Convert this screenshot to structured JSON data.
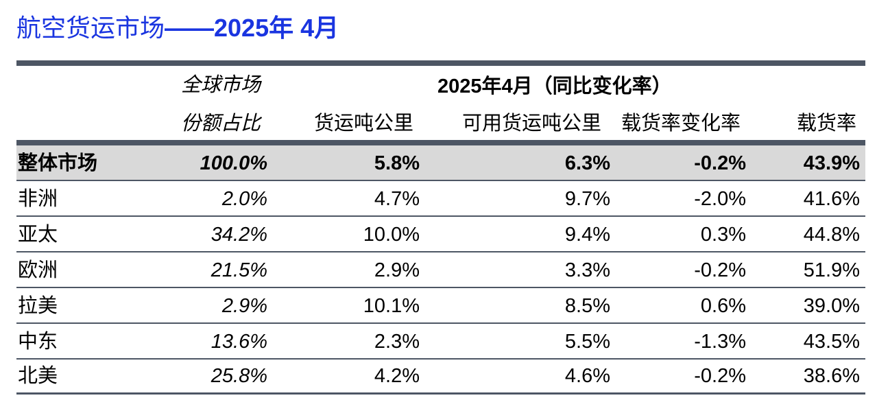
{
  "title": {
    "prefix": "航空货运市场",
    "highlight": "——2025年 4月"
  },
  "header": {
    "share_line1": "全球市场",
    "share_line2": "份额占比",
    "period_label": "2025年4月（同比变化率）",
    "col_ctk": "货运吨公里",
    "col_actk": "可用货运吨公里",
    "col_clf_change": "载货率变化率",
    "col_clf": "载货率"
  },
  "rows": [
    {
      "region": "整体市场",
      "share": "100.0%",
      "ctk": "5.8%",
      "actk": "6.3%",
      "clf_change": "-0.2%",
      "clf": "43.9%"
    },
    {
      "region": "非洲",
      "share": "2.0%",
      "ctk": "4.7%",
      "actk": "9.7%",
      "clf_change": "-2.0%",
      "clf": "41.6%"
    },
    {
      "region": "亚太",
      "share": "34.2%",
      "ctk": "10.0%",
      "actk": "9.4%",
      "clf_change": "0.3%",
      "clf": "44.8%"
    },
    {
      "region": "欧洲",
      "share": "21.5%",
      "ctk": "2.9%",
      "actk": "3.3%",
      "clf_change": "-0.2%",
      "clf": "51.9%"
    },
    {
      "region": "拉美",
      "share": "2.9%",
      "ctk": "10.1%",
      "actk": "8.5%",
      "clf_change": "0.6%",
      "clf": "39.0%"
    },
    {
      "region": "中东",
      "share": "13.6%",
      "ctk": "2.3%",
      "actk": "5.5%",
      "clf_change": "-1.3%",
      "clf": "43.5%"
    },
    {
      "region": "北美",
      "share": "25.8%",
      "ctk": "4.2%",
      "actk": "4.6%",
      "clf_change": "-0.2%",
      "clf": "38.6%"
    }
  ],
  "colors": {
    "title": "#1a35e0",
    "rule": "#4d5664",
    "total_row_bg": "#d9d9d9"
  }
}
